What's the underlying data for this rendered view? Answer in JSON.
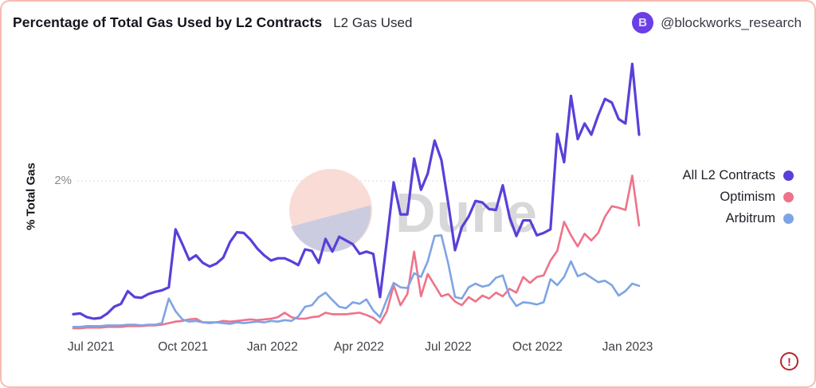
{
  "header": {
    "title": "Percentage of Total Gas Used by L2 Contracts",
    "subtitle": "L2 Gas Used",
    "account_handle": "@blockworks_research",
    "avatar_letter": "B",
    "avatar_color": "#6b3fe6"
  },
  "watermark": {
    "text": "Dune",
    "text_color": "#b9b9be",
    "circle_top_color": "#f9dcd6",
    "circle_bottom_color": "#cbccdf"
  },
  "footer": {
    "warning_glyph": "!"
  },
  "chart_data": {
    "type": "line",
    "title": "Percentage of Total Gas Used by L2 Contracts",
    "xlabel": "",
    "ylabel": "% Total Gas",
    "ylim": [
      0,
      3.75
    ],
    "grid": "horizontal-dotted-at-2pct",
    "legend_position": "right",
    "y_ticks": [
      {
        "label": "2%",
        "value": 2
      }
    ],
    "x_ticks": [
      {
        "label": "Jul 2021",
        "week_index": 2.6
      },
      {
        "label": "Oct 2021",
        "week_index": 16.1
      },
      {
        "label": "Jan 2022",
        "week_index": 29.2
      },
      {
        "label": "Apr 2022",
        "week_index": 41.9
      },
      {
        "label": "Jul 2022",
        "week_index": 55.0
      },
      {
        "label": "Oct 2022",
        "week_index": 68.1
      },
      {
        "label": "Jan 2023",
        "week_index": 81.3
      }
    ],
    "x_unit": "weeks from mid-Jun 2021 to early-Feb 2023",
    "series": [
      {
        "name": "All L2 Contracts",
        "color": "#5a3fd9",
        "stroke_width": 3.2,
        "values": [
          0.21,
          0.22,
          0.17,
          0.15,
          0.16,
          0.22,
          0.31,
          0.35,
          0.52,
          0.44,
          0.43,
          0.48,
          0.51,
          0.53,
          0.57,
          1.35,
          1.15,
          0.94,
          1.0,
          0.9,
          0.85,
          0.89,
          0.97,
          1.18,
          1.31,
          1.3,
          1.21,
          1.09,
          1.0,
          0.93,
          0.96,
          0.96,
          0.92,
          0.87,
          1.08,
          1.06,
          0.9,
          1.22,
          1.05,
          1.25,
          1.2,
          1.15,
          1.02,
          1.05,
          1.02,
          0.44,
          1.2,
          1.98,
          1.55,
          1.55,
          2.3,
          1.88,
          2.1,
          2.54,
          2.28,
          1.7,
          1.07,
          1.38,
          1.52,
          1.73,
          1.71,
          1.62,
          1.61,
          1.94,
          1.51,
          1.26,
          1.47,
          1.47,
          1.27,
          1.3,
          1.35,
          2.63,
          2.25,
          3.14,
          2.56,
          2.77,
          2.62,
          2.88,
          3.1,
          3.05,
          2.83,
          2.77,
          3.57,
          2.62
        ]
      },
      {
        "name": "Optimism",
        "color": "#ef7289",
        "stroke_width": 2.6,
        "values": [
          0.02,
          0.02,
          0.03,
          0.03,
          0.03,
          0.04,
          0.04,
          0.04,
          0.05,
          0.05,
          0.05,
          0.06,
          0.06,
          0.07,
          0.09,
          0.11,
          0.12,
          0.14,
          0.15,
          0.1,
          0.1,
          0.1,
          0.12,
          0.11,
          0.12,
          0.13,
          0.14,
          0.13,
          0.14,
          0.15,
          0.17,
          0.23,
          0.17,
          0.15,
          0.15,
          0.17,
          0.18,
          0.23,
          0.21,
          0.21,
          0.21,
          0.22,
          0.23,
          0.2,
          0.16,
          0.09,
          0.25,
          0.6,
          0.33,
          0.48,
          1.05,
          0.45,
          0.75,
          0.6,
          0.45,
          0.48,
          0.38,
          0.33,
          0.44,
          0.38,
          0.46,
          0.42,
          0.5,
          0.45,
          0.55,
          0.5,
          0.71,
          0.63,
          0.71,
          0.73,
          0.93,
          1.06,
          1.45,
          1.27,
          1.12,
          1.29,
          1.2,
          1.3,
          1.52,
          1.66,
          1.64,
          1.61,
          2.07,
          1.4
        ]
      },
      {
        "name": "Arbitrum",
        "color": "#7ea4e4",
        "stroke_width": 2.6,
        "values": [
          0.04,
          0.04,
          0.05,
          0.05,
          0.05,
          0.06,
          0.06,
          0.06,
          0.07,
          0.07,
          0.06,
          0.07,
          0.07,
          0.09,
          0.42,
          0.25,
          0.14,
          0.11,
          0.12,
          0.1,
          0.09,
          0.1,
          0.09,
          0.08,
          0.1,
          0.09,
          0.1,
          0.11,
          0.1,
          0.12,
          0.11,
          0.13,
          0.12,
          0.18,
          0.31,
          0.33,
          0.44,
          0.5,
          0.4,
          0.31,
          0.29,
          0.37,
          0.35,
          0.41,
          0.26,
          0.17,
          0.41,
          0.63,
          0.57,
          0.56,
          0.76,
          0.71,
          0.92,
          1.26,
          1.27,
          0.89,
          0.44,
          0.42,
          0.57,
          0.62,
          0.58,
          0.6,
          0.7,
          0.73,
          0.45,
          0.32,
          0.37,
          0.36,
          0.34,
          0.37,
          0.68,
          0.6,
          0.71,
          0.92,
          0.72,
          0.76,
          0.7,
          0.64,
          0.66,
          0.6,
          0.46,
          0.52,
          0.62,
          0.59
        ]
      }
    ]
  }
}
